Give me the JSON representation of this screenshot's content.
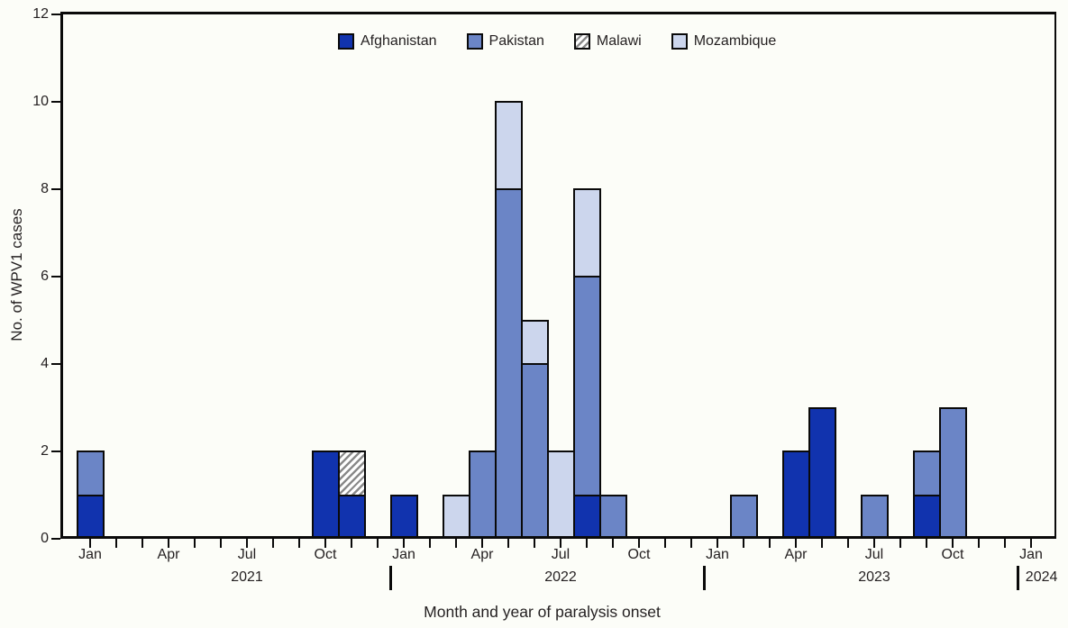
{
  "figure": {
    "background_color": "#fcfdf8",
    "text_color": "#231f20",
    "axis_color": "#0a0a0a"
  },
  "chart_data": {
    "type": "bar",
    "stacked": true,
    "title": "",
    "xlabel": "Month and year of paralysis onset",
    "ylabel": "No. of WPV1 cases",
    "ylim": [
      0,
      12
    ],
    "yticks": [
      0,
      2,
      4,
      6,
      8,
      10,
      12
    ],
    "grid": false,
    "legend_position": "top-center",
    "n_months": 37,
    "x_start_month": "Jan 2021",
    "x_end_month": "Jan 2024",
    "x_ticks_labeled": [
      {
        "index": 0,
        "label": "Jan"
      },
      {
        "index": 3,
        "label": "Apr"
      },
      {
        "index": 6,
        "label": "Jul"
      },
      {
        "index": 9,
        "label": "Oct"
      },
      {
        "index": 12,
        "label": "Jan"
      },
      {
        "index": 15,
        "label": "Apr"
      },
      {
        "index": 18,
        "label": "Jul"
      },
      {
        "index": 21,
        "label": "Oct"
      },
      {
        "index": 24,
        "label": "Jan"
      },
      {
        "index": 27,
        "label": "Apr"
      },
      {
        "index": 30,
        "label": "Jul"
      },
      {
        "index": 33,
        "label": "Oct"
      },
      {
        "index": 36,
        "label": "Jan"
      }
    ],
    "year_axis": [
      {
        "label": "2021",
        "center_month_index": 6
      },
      {
        "label": "2022",
        "center_month_index": 18
      },
      {
        "label": "2023",
        "center_month_index": 30
      },
      {
        "label": "2024",
        "center_month_index": 36.4
      }
    ],
    "year_dividers_month_index": [
      11.5,
      23.5,
      35.5
    ],
    "series": [
      {
        "name": "Afghanistan",
        "fill": "#1133ae",
        "hatch": false
      },
      {
        "name": "Pakistan",
        "fill": "#6b85c6",
        "hatch": false
      },
      {
        "name": "Malawi",
        "fill": "#ffffff",
        "hatch": true,
        "hatch_color": "#8a8a8a"
      },
      {
        "name": "Mozambique",
        "fill": "#ccd6ed",
        "hatch": false
      }
    ],
    "bars": [
      {
        "label": "Jan 2021",
        "index": 0,
        "segments": [
          {
            "series": "Afghanistan",
            "value": 1
          },
          {
            "series": "Pakistan",
            "value": 1
          }
        ]
      },
      {
        "label": "Oct 2021",
        "index": 9,
        "segments": [
          {
            "series": "Afghanistan",
            "value": 2
          }
        ]
      },
      {
        "label": "Nov 2021",
        "index": 10,
        "segments": [
          {
            "series": "Afghanistan",
            "value": 1
          },
          {
            "series": "Malawi",
            "value": 1
          }
        ]
      },
      {
        "label": "Jan 2022",
        "index": 12,
        "segments": [
          {
            "series": "Afghanistan",
            "value": 1
          }
        ]
      },
      {
        "label": "Mar 2022",
        "index": 14,
        "segments": [
          {
            "series": "Mozambique",
            "value": 1
          }
        ]
      },
      {
        "label": "Apr 2022",
        "index": 15,
        "segments": [
          {
            "series": "Pakistan",
            "value": 2
          }
        ]
      },
      {
        "label": "May 2022",
        "index": 16,
        "segments": [
          {
            "series": "Pakistan",
            "value": 8
          },
          {
            "series": "Mozambique",
            "value": 2
          }
        ]
      },
      {
        "label": "Jun 2022",
        "index": 17,
        "segments": [
          {
            "series": "Pakistan",
            "value": 4
          },
          {
            "series": "Mozambique",
            "value": 1
          }
        ]
      },
      {
        "label": "Jul 2022",
        "index": 18,
        "segments": [
          {
            "series": "Mozambique",
            "value": 2
          }
        ]
      },
      {
        "label": "Aug 2022",
        "index": 19,
        "segments": [
          {
            "series": "Afghanistan",
            "value": 1
          },
          {
            "series": "Pakistan",
            "value": 5
          },
          {
            "series": "Mozambique",
            "value": 2
          }
        ]
      },
      {
        "label": "Sep 2022",
        "index": 20,
        "segments": [
          {
            "series": "Pakistan",
            "value": 1
          }
        ]
      },
      {
        "label": "Feb 2023",
        "index": 25,
        "segments": [
          {
            "series": "Pakistan",
            "value": 1
          }
        ]
      },
      {
        "label": "Apr 2023",
        "index": 27,
        "segments": [
          {
            "series": "Afghanistan",
            "value": 2
          }
        ]
      },
      {
        "label": "May 2023",
        "index": 28,
        "segments": [
          {
            "series": "Afghanistan",
            "value": 3
          }
        ]
      },
      {
        "label": "Jul 2023",
        "index": 30,
        "segments": [
          {
            "series": "Pakistan",
            "value": 1
          }
        ]
      },
      {
        "label": "Sep 2023",
        "index": 32,
        "segments": [
          {
            "series": "Afghanistan",
            "value": 1
          },
          {
            "series": "Pakistan",
            "value": 1
          }
        ]
      },
      {
        "label": "Oct 2023",
        "index": 33,
        "segments": [
          {
            "series": "Pakistan",
            "value": 3
          }
        ]
      }
    ]
  }
}
